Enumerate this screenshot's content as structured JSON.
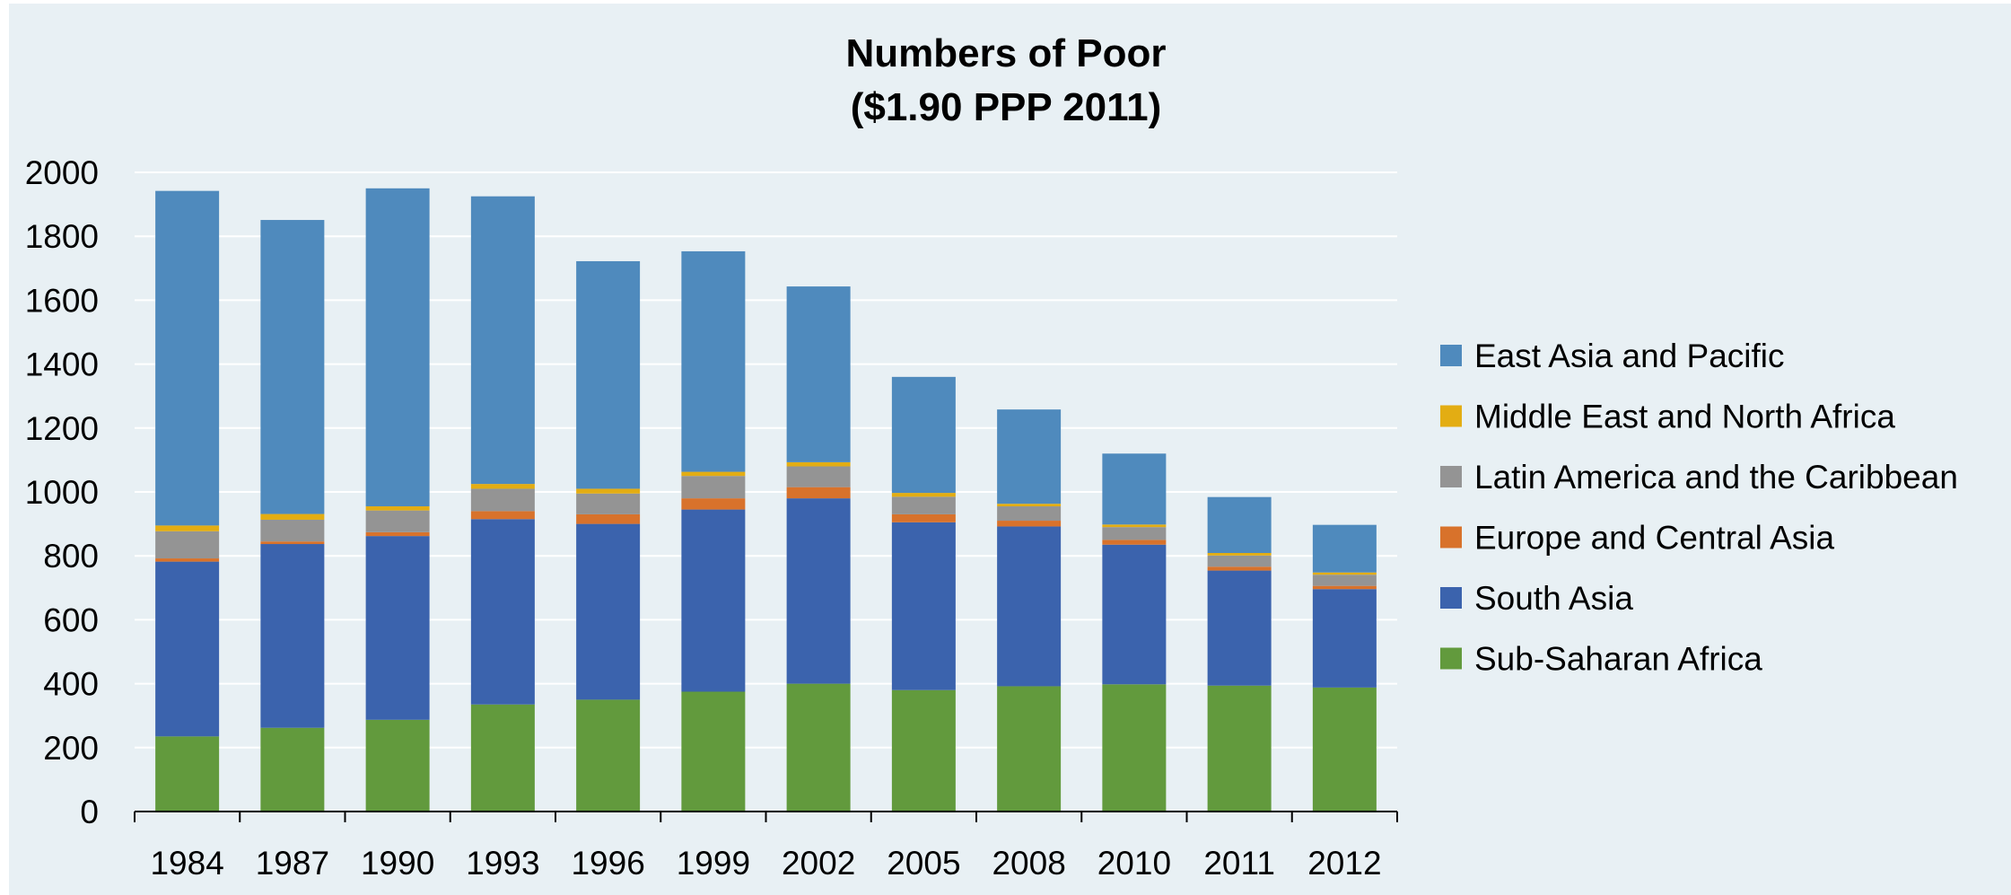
{
  "chart_data": {
    "type": "bar",
    "stacked": true,
    "title": "Numbers of Poor",
    "subtitle": "($1.90 PPP 2011)",
    "xlabel": "",
    "ylabel": "",
    "ylim": [
      0,
      2000
    ],
    "yticks": [
      "0",
      "200",
      "400",
      "600",
      "800",
      "1000",
      "1200",
      "1400",
      "1600",
      "1800",
      "2000"
    ],
    "grid": true,
    "legend_position": "right",
    "categories": [
      "1984",
      "1987",
      "1990",
      "1993",
      "1996",
      "1999",
      "2002",
      "2005",
      "2008",
      "2010",
      "2011",
      "2012"
    ],
    "series": [
      {
        "name": "Sub-Saharan Africa",
        "color": "#629a3d",
        "values": [
          235,
          262,
          287,
          335,
          350,
          375,
          400,
          380,
          392,
          398,
          394,
          388
        ]
      },
      {
        "name": "South Asia",
        "color": "#3b63ad",
        "values": [
          547,
          575,
          575,
          580,
          550,
          570,
          580,
          525,
          500,
          437,
          360,
          308
        ]
      },
      {
        "name": "Europe and Central Asia",
        "color": "#d8722b",
        "values": [
          10,
          8,
          12,
          25,
          30,
          35,
          35,
          25,
          18,
          15,
          12,
          10
        ]
      },
      {
        "name": "Latin America and the Caribbean",
        "color": "#949494",
        "values": [
          85,
          68,
          68,
          70,
          65,
          70,
          65,
          55,
          45,
          40,
          35,
          35
        ]
      },
      {
        "name": "Middle East and North Africa",
        "color": "#e3ad13",
        "values": [
          18,
          18,
          13,
          15,
          15,
          13,
          13,
          12,
          8,
          8,
          8,
          7
        ]
      },
      {
        "name": "East Asia and Pacific",
        "color": "#4f8abd",
        "values": [
          1047,
          920,
          995,
          900,
          712,
          690,
          550,
          363,
          295,
          222,
          175,
          149
        ]
      }
    ]
  }
}
